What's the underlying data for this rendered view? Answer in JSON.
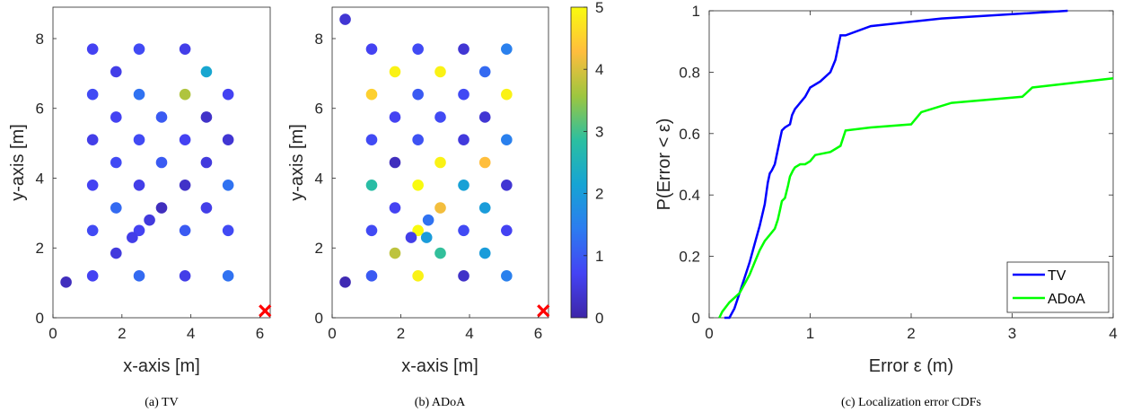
{
  "chart_data": [
    {
      "type": "scatter",
      "caption": "(a) TV",
      "xlabel": "x-axis [m]",
      "ylabel": "y-axis [m]",
      "xlim": [
        0,
        6.3
      ],
      "ylim": [
        0,
        8.9
      ],
      "xticks": [
        0,
        2,
        4,
        6
      ],
      "yticks": [
        0,
        2,
        4,
        6,
        8
      ],
      "color_scale": [
        0,
        5
      ],
      "marker_x": [
        6.15,
        0.2
      ],
      "points": [
        [
          0.38,
          1.02,
          0.2
        ],
        [
          1.15,
          1.2,
          0.7
        ],
        [
          2.5,
          1.2,
          1.2
        ],
        [
          3.83,
          1.2,
          0.6
        ],
        [
          5.08,
          1.2,
          1.3
        ],
        [
          1.15,
          2.5,
          0.8
        ],
        [
          2.5,
          2.5,
          0.7
        ],
        [
          3.83,
          2.5,
          1.0
        ],
        [
          5.08,
          2.5,
          0.8
        ],
        [
          1.83,
          1.85,
          0.5
        ],
        [
          2.3,
          2.3,
          0.6
        ],
        [
          2.8,
          2.8,
          0.5
        ],
        [
          3.15,
          3.15,
          0.2
        ],
        [
          1.83,
          3.15,
          1.2
        ],
        [
          4.45,
          3.15,
          0.6
        ],
        [
          1.15,
          3.8,
          0.7
        ],
        [
          2.5,
          3.8,
          0.6
        ],
        [
          3.83,
          3.8,
          0.3
        ],
        [
          5.08,
          3.8,
          1.3
        ],
        [
          1.83,
          4.45,
          0.8
        ],
        [
          3.15,
          4.45,
          1.0
        ],
        [
          4.45,
          4.45,
          0.5
        ],
        [
          1.15,
          5.1,
          0.6
        ],
        [
          2.5,
          5.1,
          0.8
        ],
        [
          3.83,
          5.1,
          0.7
        ],
        [
          5.08,
          5.1,
          0.4
        ],
        [
          1.83,
          5.75,
          0.7
        ],
        [
          3.15,
          5.75,
          1.0
        ],
        [
          4.45,
          5.75,
          0.3
        ],
        [
          1.15,
          6.4,
          0.8
        ],
        [
          2.5,
          6.4,
          1.3
        ],
        [
          3.83,
          6.4,
          3.7
        ],
        [
          5.08,
          6.4,
          0.7
        ],
        [
          1.83,
          7.05,
          0.6
        ],
        [
          4.45,
          7.05,
          2.2
        ],
        [
          1.15,
          7.7,
          0.7
        ],
        [
          2.5,
          7.7,
          0.8
        ],
        [
          3.83,
          7.7,
          0.6
        ]
      ]
    },
    {
      "type": "scatter",
      "caption": "(b) ADoA",
      "xlabel": "x-axis [m]",
      "ylabel": "y-axis [m]",
      "xlim": [
        0,
        6.3
      ],
      "ylim": [
        0,
        8.9
      ],
      "xticks": [
        0,
        2,
        4,
        6
      ],
      "yticks": [
        0,
        2,
        4,
        6,
        8
      ],
      "color_scale": [
        0,
        5
      ],
      "marker_x": [
        6.15,
        0.2
      ],
      "colorbar_ticks": [
        0,
        1,
        2,
        3,
        4,
        5
      ],
      "points": [
        [
          0.38,
          8.55,
          0.4
        ],
        [
          0.38,
          1.02,
          0.1
        ],
        [
          1.15,
          1.2,
          1.0
        ],
        [
          2.5,
          1.2,
          4.9
        ],
        [
          3.83,
          1.2,
          0.3
        ],
        [
          5.08,
          1.2,
          1.5
        ],
        [
          1.15,
          2.5,
          0.8
        ],
        [
          2.5,
          2.5,
          5.0
        ],
        [
          3.83,
          2.5,
          0.8
        ],
        [
          5.08,
          2.5,
          0.7
        ],
        [
          1.83,
          1.85,
          3.8
        ],
        [
          3.15,
          1.85,
          2.9
        ],
        [
          4.45,
          1.85,
          2.0
        ],
        [
          2.3,
          2.3,
          0.6
        ],
        [
          2.75,
          2.3,
          2.0
        ],
        [
          2.8,
          2.8,
          1.3
        ],
        [
          1.83,
          3.15,
          0.7
        ],
        [
          3.15,
          3.15,
          4.2
        ],
        [
          4.45,
          3.15,
          2.0
        ],
        [
          1.15,
          3.8,
          2.8
        ],
        [
          2.5,
          3.8,
          5.0
        ],
        [
          3.83,
          3.8,
          2.1
        ],
        [
          5.08,
          3.8,
          0.4
        ],
        [
          1.83,
          4.45,
          0.2
        ],
        [
          3.15,
          4.45,
          4.9
        ],
        [
          4.45,
          4.45,
          4.3
        ],
        [
          1.15,
          5.1,
          0.8
        ],
        [
          2.5,
          5.1,
          0.9
        ],
        [
          3.83,
          5.1,
          0.5
        ],
        [
          5.08,
          5.1,
          1.5
        ],
        [
          1.83,
          5.75,
          0.7
        ],
        [
          3.15,
          5.75,
          0.8
        ],
        [
          4.45,
          5.75,
          0.4
        ],
        [
          1.15,
          6.4,
          4.5
        ],
        [
          2.5,
          6.4,
          1.0
        ],
        [
          3.83,
          6.4,
          0.8
        ],
        [
          5.08,
          6.4,
          4.9
        ],
        [
          1.83,
          7.05,
          4.9
        ],
        [
          3.15,
          7.05,
          4.9
        ],
        [
          4.45,
          7.05,
          1.2
        ],
        [
          1.15,
          7.7,
          0.7
        ],
        [
          2.5,
          7.7,
          0.8
        ],
        [
          3.83,
          7.7,
          0.4
        ],
        [
          5.08,
          7.7,
          1.5
        ]
      ]
    },
    {
      "type": "line",
      "caption": "(c) Localization error CDFs",
      "xlabel": "Error ε (m)",
      "ylabel": "P(Error < ε)",
      "xlim": [
        0,
        4
      ],
      "ylim": [
        0,
        1
      ],
      "xticks": [
        0,
        1,
        2,
        3,
        4
      ],
      "yticks": [
        0,
        0.2,
        0.4,
        0.6,
        0.8,
        1
      ],
      "legend": "bottom-right",
      "series": [
        {
          "name": "TV",
          "color": "#0000ff",
          "x": [
            0.15,
            0.2,
            0.25,
            0.3,
            0.35,
            0.4,
            0.45,
            0.5,
            0.55,
            0.58,
            0.6,
            0.62,
            0.65,
            0.7,
            0.72,
            0.75,
            0.8,
            0.82,
            0.85,
            0.9,
            0.95,
            1.0,
            1.1,
            1.2,
            1.25,
            1.3,
            1.35,
            1.6,
            2.3,
            3.55
          ],
          "y": [
            0,
            0,
            0.03,
            0.08,
            0.13,
            0.18,
            0.24,
            0.3,
            0.37,
            0.44,
            0.47,
            0.48,
            0.5,
            0.58,
            0.61,
            0.62,
            0.63,
            0.66,
            0.68,
            0.7,
            0.72,
            0.75,
            0.77,
            0.8,
            0.84,
            0.92,
            0.92,
            0.95,
            0.975,
            1.0
          ]
        },
        {
          "name": "ADoA",
          "color": "#00ff00",
          "x": [
            0.1,
            0.13,
            0.2,
            0.3,
            0.35,
            0.4,
            0.45,
            0.5,
            0.55,
            0.6,
            0.65,
            0.68,
            0.7,
            0.72,
            0.75,
            0.78,
            0.8,
            0.83,
            0.85,
            0.9,
            0.95,
            1.0,
            1.05,
            1.2,
            1.3,
            1.35,
            1.6,
            2.0,
            2.1,
            2.4,
            3.1,
            3.2,
            4.0
          ],
          "y": [
            0,
            0.02,
            0.05,
            0.08,
            0.11,
            0.14,
            0.18,
            0.22,
            0.25,
            0.27,
            0.29,
            0.32,
            0.35,
            0.38,
            0.39,
            0.43,
            0.46,
            0.48,
            0.49,
            0.5,
            0.5,
            0.51,
            0.53,
            0.54,
            0.56,
            0.61,
            0.62,
            0.63,
            0.67,
            0.7,
            0.72,
            0.75,
            0.78
          ]
        }
      ]
    }
  ]
}
